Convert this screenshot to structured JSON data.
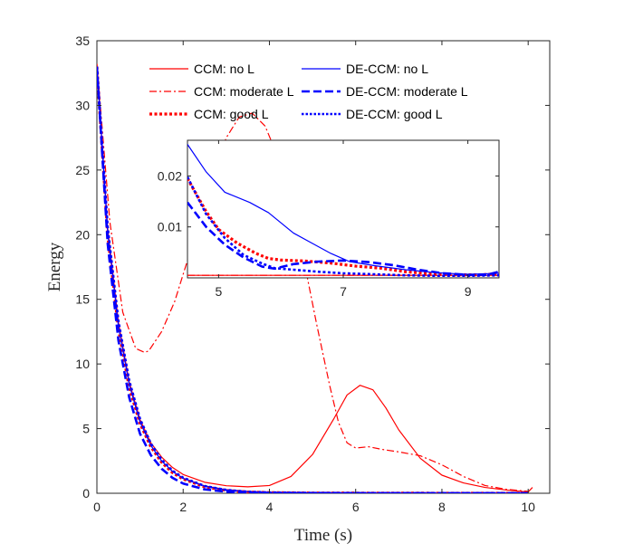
{
  "chart_data": {
    "type": "line",
    "xlabel": "Time (s)",
    "ylabel": "Energy",
    "xlim": [
      0,
      10.5
    ],
    "ylim": [
      0,
      35
    ],
    "xticks": [
      "0",
      "2",
      "4",
      "6",
      "8",
      "10"
    ],
    "yticks": [
      "0",
      "5",
      "10",
      "15",
      "20",
      "25",
      "30",
      "35"
    ],
    "grid": false,
    "legend_location": "top",
    "series": [
      {
        "name": "CCM: no L",
        "color": "#ff0000",
        "dash": "solid",
        "width": 1.2,
        "x": [
          0,
          0.25,
          0.5,
          0.75,
          1.0,
          1.25,
          1.5,
          1.75,
          2.0,
          2.5,
          3.0,
          3.5,
          4.0,
          4.5,
          5.0,
          5.5,
          5.8,
          6.1,
          6.4,
          6.7,
          7.0,
          7.5,
          8.0,
          8.5,
          9.0,
          9.5,
          10.0,
          10.1
        ],
        "y": [
          33.2,
          20.5,
          13.2,
          8.6,
          5.7,
          3.9,
          2.8,
          2.0,
          1.45,
          0.85,
          0.58,
          0.5,
          0.6,
          1.3,
          3.0,
          5.8,
          7.6,
          8.35,
          8.0,
          6.6,
          4.9,
          2.7,
          1.4,
          0.8,
          0.45,
          0.25,
          0.1,
          0.45
        ]
      },
      {
        "name": "CCM: moderate L",
        "color": "#ff0000",
        "dash": "dashdot",
        "width": 1.2,
        "x": [
          0,
          0.3,
          0.6,
          0.9,
          1.1,
          1.2,
          1.5,
          1.8,
          2.1,
          2.4,
          2.7,
          3.0,
          3.3,
          3.6,
          3.9,
          4.2,
          4.5,
          4.8,
          5.1,
          5.4,
          5.6,
          5.8,
          6.0,
          6.3,
          6.6,
          7.0,
          7.5,
          8.0,
          8.5,
          9.0,
          9.5,
          10.0
        ],
        "y": [
          33.2,
          21.0,
          14.0,
          11.2,
          10.9,
          11.0,
          12.5,
          14.8,
          18.0,
          21.5,
          24.8,
          27.5,
          29.1,
          29.4,
          28.4,
          26.0,
          22.5,
          18.0,
          13.0,
          8.3,
          5.5,
          3.9,
          3.5,
          3.6,
          3.4,
          3.2,
          2.9,
          2.2,
          1.3,
          0.6,
          0.3,
          0.15
        ]
      },
      {
        "name": "CCM: good L",
        "color": "#ff0000",
        "dash": "dotted",
        "width": 3.2,
        "x": [
          0,
          0.25,
          0.5,
          0.75,
          1.0,
          1.25,
          1.5,
          1.75,
          2.0,
          2.5,
          3.0,
          3.5,
          4.0,
          5.0,
          6.0,
          7.0,
          8.0,
          9.0,
          10.0
        ],
        "y": [
          33.0,
          20.0,
          12.7,
          8.2,
          5.4,
          3.6,
          2.4,
          1.6,
          1.1,
          0.5,
          0.22,
          0.1,
          0.05,
          0.02,
          0.015,
          0.01,
          0.005,
          0.005,
          0.005
        ]
      },
      {
        "name": "DE-CCM: no L",
        "color": "#0000ff",
        "dash": "solid",
        "width": 1.2,
        "x": [
          0,
          0.25,
          0.5,
          0.75,
          1.0,
          1.25,
          1.5,
          1.75,
          2.0,
          2.5,
          3.0,
          3.5,
          4.0,
          5.0,
          6.0,
          7.0,
          8.0,
          9.0,
          10.0
        ],
        "y": [
          33.0,
          20.2,
          12.9,
          8.4,
          5.5,
          3.7,
          2.5,
          1.7,
          1.15,
          0.55,
          0.26,
          0.12,
          0.06,
          0.03,
          0.02,
          0.01,
          0.005,
          0.005,
          0.005
        ]
      },
      {
        "name": "DE-CCM: moderate L",
        "color": "#0000ff",
        "dash": "dashed",
        "width": 2.6,
        "x": [
          0,
          0.25,
          0.5,
          0.75,
          1.0,
          1.25,
          1.5,
          1.75,
          2.0,
          2.5,
          3.0,
          3.5,
          4.0,
          5.0,
          6.0,
          7.0,
          8.0,
          9.0,
          10.0
        ],
        "y": [
          33.0,
          19.3,
          11.8,
          7.4,
          4.6,
          2.95,
          1.9,
          1.2,
          0.75,
          0.3,
          0.12,
          0.05,
          0.02,
          0.012,
          0.01,
          0.008,
          0.005,
          0.004,
          0.004
        ]
      },
      {
        "name": "DE-CCM: good L",
        "color": "#0000ff",
        "dash": "dotted",
        "width": 2.6,
        "x": [
          0,
          0.25,
          0.5,
          0.75,
          1.0,
          1.25,
          1.5,
          1.75,
          2.0,
          2.5,
          3.0,
          3.5,
          4.0,
          5.0,
          6.0,
          7.0,
          8.0,
          9.0,
          10.0
        ],
        "y": [
          33.0,
          20.6,
          13.3,
          8.7,
          5.75,
          3.85,
          2.6,
          1.75,
          1.2,
          0.56,
          0.26,
          0.12,
          0.06,
          0.025,
          0.015,
          0.01,
          0.006,
          0.005,
          0.005
        ]
      }
    ],
    "inset": {
      "xlim": [
        4.5,
        9.5
      ],
      "ylim": [
        0,
        0.027
      ],
      "xticks": [
        "5",
        "7",
        "9"
      ],
      "yticks": [
        "0.01",
        "0.02"
      ],
      "series": [
        {
          "ref": 0,
          "x": [
            4.5,
            9.5
          ],
          "y": [
            0.0005,
            0.0005
          ]
        },
        {
          "ref": 1,
          "x": [
            4.5,
            9.5
          ],
          "y": [
            0.0005,
            0.0005
          ]
        },
        {
          "ref": 2,
          "x": [
            4.5,
            4.8,
            5.0,
            5.3,
            5.6,
            5.8,
            6.0,
            6.4,
            6.8,
            7.2,
            7.6,
            8.0,
            8.4,
            8.8,
            9.2,
            9.5
          ],
          "y": [
            0.0195,
            0.013,
            0.0095,
            0.0068,
            0.0048,
            0.0038,
            0.0035,
            0.0033,
            0.0029,
            0.0023,
            0.0019,
            0.0012,
            0.0008,
            0.0006,
            0.0006,
            0.0008
          ]
        },
        {
          "ref": 3,
          "x": [
            4.5,
            4.8,
            5.1,
            5.5,
            5.8,
            6.0,
            6.2,
            6.5,
            6.8,
            7.1,
            7.5,
            8.0,
            8.5,
            9.0,
            9.5
          ],
          "y": [
            0.0262,
            0.0208,
            0.0168,
            0.0148,
            0.0128,
            0.0108,
            0.0088,
            0.0068,
            0.0048,
            0.0032,
            0.0024,
            0.0016,
            0.001,
            0.0007,
            0.0009
          ]
        },
        {
          "ref": 4,
          "x": [
            4.5,
            4.8,
            5.1,
            5.4,
            5.7,
            5.9,
            6.2,
            6.6,
            7.0,
            7.4,
            7.8,
            8.2,
            8.6,
            9.0,
            9.3,
            9.5
          ],
          "y": [
            0.0148,
            0.01,
            0.0065,
            0.004,
            0.0022,
            0.0018,
            0.0027,
            0.0032,
            0.0034,
            0.0031,
            0.0025,
            0.0016,
            0.0009,
            0.0006,
            0.0006,
            0.0012
          ]
        },
        {
          "ref": 5,
          "x": [
            4.5,
            4.8,
            5.1,
            5.4,
            5.7,
            5.9,
            6.2,
            6.6,
            7.0,
            7.5,
            8.0,
            8.5,
            9.0,
            9.5
          ],
          "y": [
            0.0198,
            0.0125,
            0.0078,
            0.0045,
            0.0028,
            0.0019,
            0.0016,
            0.0012,
            0.0009,
            0.0007,
            0.0005,
            0.0004,
            0.0004,
            0.0005
          ]
        }
      ]
    }
  }
}
